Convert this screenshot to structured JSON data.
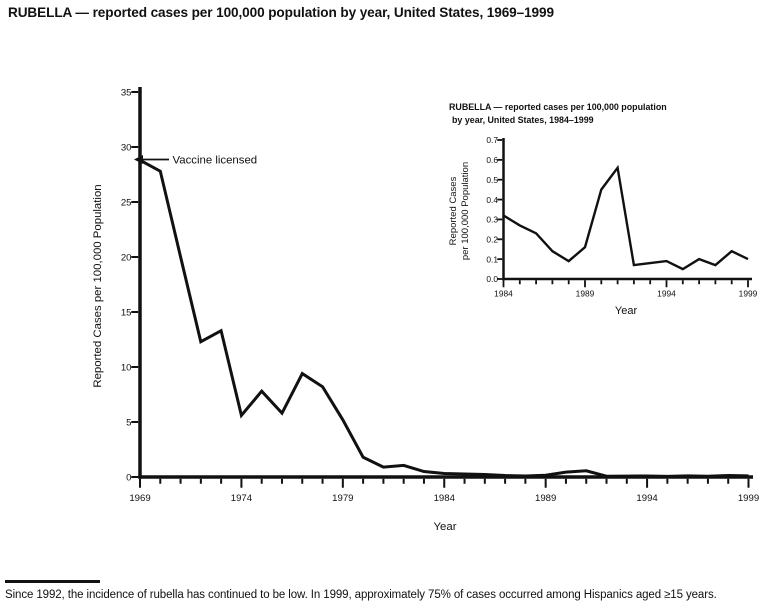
{
  "title": "RUBELLA — reported cases per 100,000 population by year, United States, 1969–1999",
  "footnote": "Since 1992, the incidence of rubella has continued to be low. In 1999, approximately 75% of cases occurred among Hispanics aged ≥15 years.",
  "ink_color": "#111111",
  "chart_data": [
    {
      "id": "main",
      "type": "line",
      "x_start": 1969,
      "x_end": 1999,
      "x": [
        1969,
        1970,
        1971,
        1972,
        1973,
        1974,
        1975,
        1976,
        1977,
        1978,
        1979,
        1980,
        1981,
        1982,
        1983,
        1984,
        1985,
        1986,
        1987,
        1988,
        1989,
        1990,
        1991,
        1992,
        1993,
        1994,
        1995,
        1996,
        1997,
        1998,
        1999
      ],
      "values": [
        28.8,
        27.8,
        20.0,
        12.3,
        13.3,
        5.6,
        7.8,
        5.8,
        9.4,
        8.2,
        5.2,
        1.8,
        0.9,
        1.05,
        0.5,
        0.32,
        0.27,
        0.23,
        0.14,
        0.09,
        0.16,
        0.45,
        0.56,
        0.07,
        0.08,
        0.09,
        0.05,
        0.1,
        0.07,
        0.14,
        0.1
      ],
      "ylim": [
        0,
        35
      ],
      "ytick_values": [
        0,
        5,
        10,
        15,
        20,
        25,
        30,
        35
      ],
      "ytick_labels": [
        "0",
        "5",
        "10",
        "15",
        "20",
        "25",
        "30",
        "35"
      ],
      "xticks_labeled": [
        1969,
        1974,
        1979,
        1984,
        1989,
        1994,
        1999
      ],
      "xlabel": "Year",
      "ylabel_lines": [
        "Reported Cases per 100,000 Population"
      ],
      "grid": false,
      "annotation": {
        "text": "Vaccine licensed",
        "x": 1969,
        "y": 28.8
      }
    },
    {
      "id": "inset",
      "type": "line",
      "title_lines": [
        "RUBELLA — reported cases per 100,000 population",
        "by year, United States, 1984–1999"
      ],
      "x_start": 1984,
      "x_end": 1999,
      "x": [
        1984,
        1985,
        1986,
        1987,
        1988,
        1989,
        1990,
        1991,
        1992,
        1993,
        1994,
        1995,
        1996,
        1997,
        1998,
        1999
      ],
      "values": [
        0.32,
        0.27,
        0.23,
        0.14,
        0.09,
        0.16,
        0.45,
        0.56,
        0.07,
        0.08,
        0.09,
        0.05,
        0.1,
        0.07,
        0.14,
        0.1
      ],
      "ylim": [
        0,
        0.7
      ],
      "ytick_values": [
        0,
        0.1,
        0.2,
        0.3,
        0.4,
        0.5,
        0.6,
        0.7
      ],
      "ytick_labels": [
        "0.0",
        "0.1",
        "0.2",
        "0.3",
        "0.4",
        "0.5",
        "0.6",
        "0.7"
      ],
      "xticks_labeled": [
        1984,
        1989,
        1994,
        1999
      ],
      "xlabel": "Year",
      "ylabel_lines": [
        "Reported Cases",
        "per 100,000 Population"
      ],
      "grid": false
    }
  ]
}
